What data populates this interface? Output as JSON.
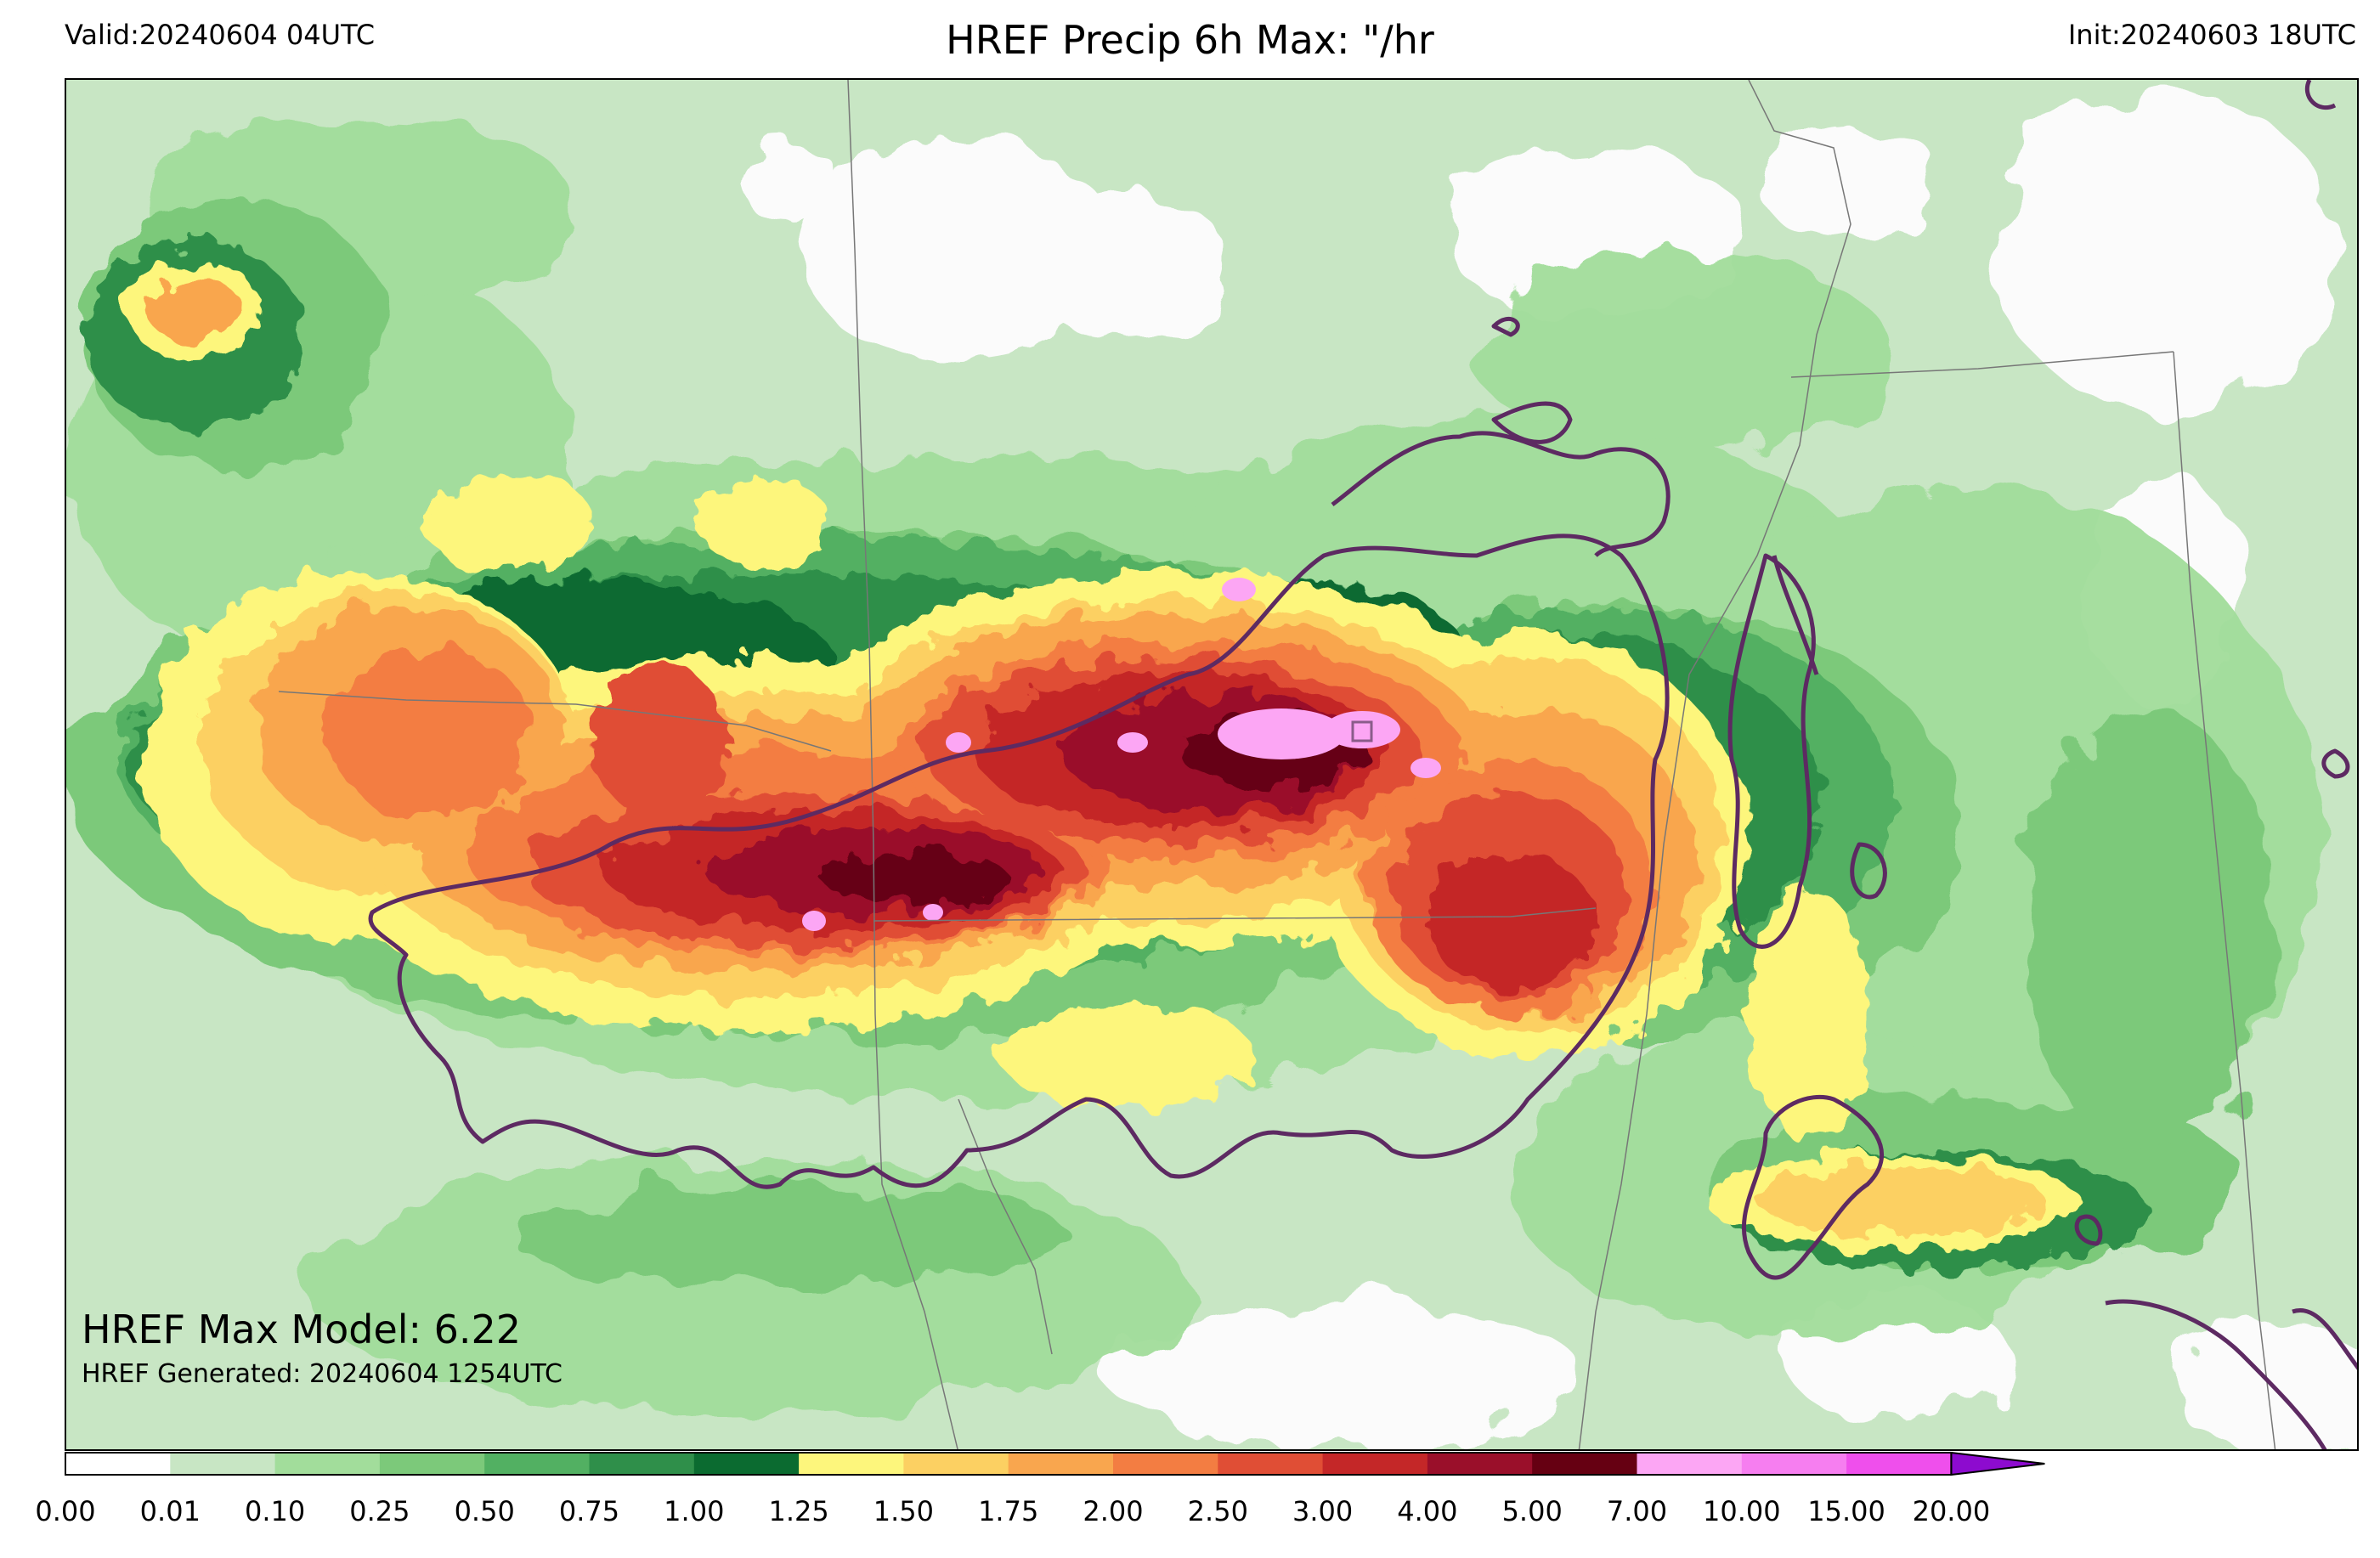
{
  "header": {
    "valid": "Valid:20240604 04UTC",
    "title": "HREF Precip 6h Max: \"/hr",
    "init": "Init:20240603 18UTC"
  },
  "annotations": {
    "max_model": "HREF Max Model: 6.22",
    "generated": "HREF Generated: 20240604 1254UTC"
  },
  "colorbar": {
    "levels": [
      "0.00",
      "0.01",
      "0.10",
      "0.25",
      "0.50",
      "0.75",
      "1.00",
      "1.25",
      "1.50",
      "1.75",
      "2.00",
      "2.50",
      "3.00",
      "4.00",
      "5.00",
      "7.00",
      "10.00",
      "15.00",
      "20.00"
    ],
    "colors": [
      "#ffffff",
      "#c8e6c4",
      "#a2dd9b",
      "#7cc97a",
      "#52b062",
      "#2f8f4a",
      "#0b6b30",
      "#fdf67c",
      "#fcd062",
      "#f9a64e",
      "#f37d42",
      "#e04e35",
      "#c42728",
      "#9a0f2a",
      "#660012",
      "#fca6f4",
      "#f67ef0",
      "#ef4fec",
      "#dc1fe4",
      "#8d0bcf"
    ]
  },
  "colors": {
    "background": "#fbfbfb",
    "boundary": "#5d2a62",
    "state_lines": "#777777"
  }
}
